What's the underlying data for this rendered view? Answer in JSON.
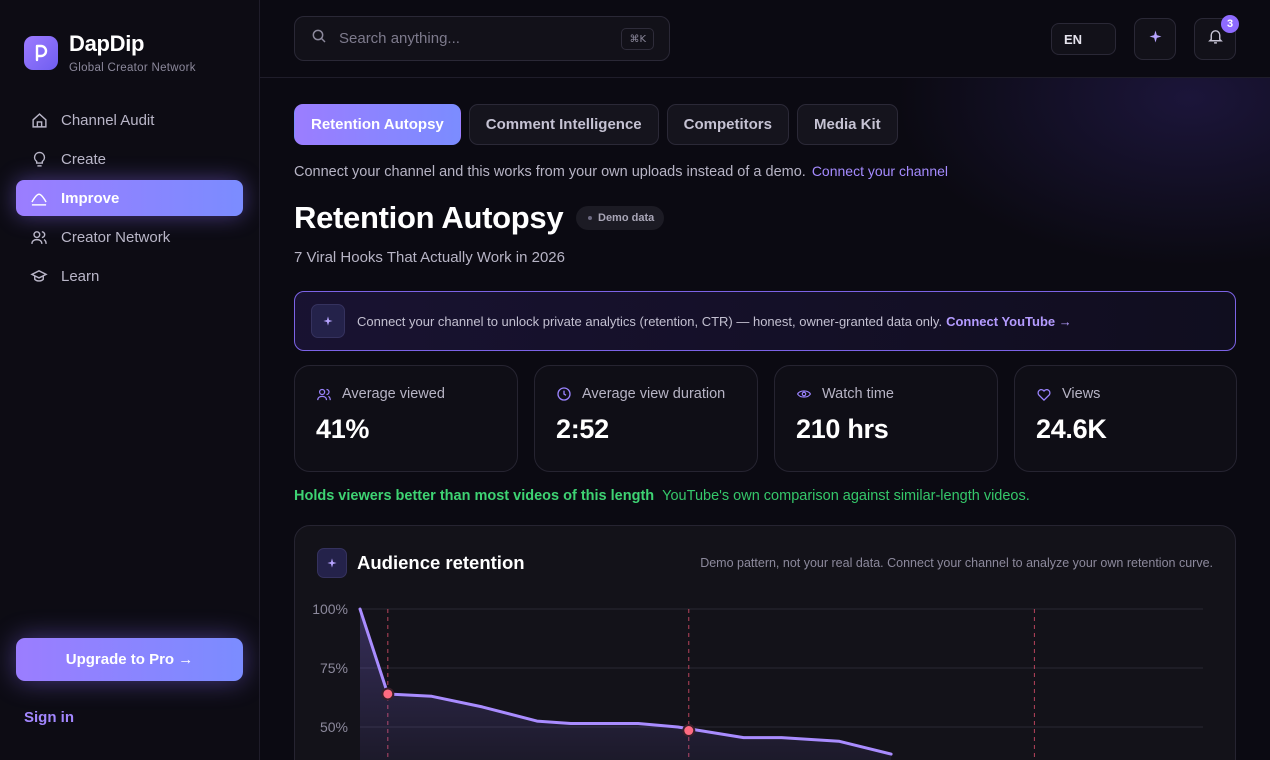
{
  "brand": {
    "name": "DapDip",
    "tagline": "Global Creator Network"
  },
  "sidebar": {
    "items": [
      {
        "label": "Channel Audit",
        "icon": "home-icon",
        "active": false
      },
      {
        "label": "Create",
        "icon": "lightbulb-icon",
        "active": false
      },
      {
        "label": "Improve",
        "icon": "trend-icon",
        "active": true
      },
      {
        "label": "Creator Network",
        "icon": "users-icon",
        "active": false
      },
      {
        "label": "Learn",
        "icon": "graduation-cap-icon",
        "active": false
      }
    ],
    "upgrade_label": "Upgrade to Pro →",
    "signin_label": "Sign in"
  },
  "topbar": {
    "search_placeholder": "Search anything...",
    "search_shortcut": "⌘K",
    "language": "EN",
    "notification_count": "3"
  },
  "tabs": [
    {
      "label": "Retention Autopsy",
      "active": true
    },
    {
      "label": "Comment Intelligence",
      "active": false
    },
    {
      "label": "Competitors",
      "active": false
    },
    {
      "label": "Media Kit",
      "active": false
    }
  ],
  "connect_notice": {
    "text": "Connect your channel and this works from your own uploads instead of a demo.",
    "link": "Connect your channel"
  },
  "page": {
    "title": "Retention Autopsy",
    "demo_badge": "Demo data",
    "subtitle": "7 Viral Hooks That Actually Work in 2026"
  },
  "banner": {
    "text": "Connect your channel to unlock private analytics (retention, CTR) — honest, owner-granted data only.",
    "link": "Connect YouTube →"
  },
  "stats": [
    {
      "label": "Average viewed",
      "value": "41%",
      "icon": "users-icon"
    },
    {
      "label": "Average view duration",
      "value": "2:52",
      "icon": "clock-icon"
    },
    {
      "label": "Watch time",
      "value": "210 hrs",
      "icon": "eye-icon"
    },
    {
      "label": "Views",
      "value": "24.6K",
      "icon": "heart-icon"
    }
  ],
  "comparison": {
    "headline": "Holds viewers better than most videos of this length",
    "detail": "YouTube's own comparison against similar-length videos."
  },
  "chart_card": {
    "title": "Audience retention",
    "note": "Demo pattern, not your real data. Connect your channel to analyze your own retention curve."
  },
  "colors": {
    "accent": "#9b7dff",
    "accent2": "#7b8cff",
    "positive": "#3ed373",
    "marker": "#ff6b81"
  },
  "chart_data": {
    "type": "area",
    "ytick_labels": [
      "100%",
      "75%",
      "50%"
    ],
    "ylim": [
      0,
      100
    ],
    "xlim": [
      0,
      100
    ],
    "x": [
      0,
      3.3,
      8.5,
      14.5,
      21,
      25,
      33,
      37.7,
      45.5,
      50,
      56.8,
      63
    ],
    "values": [
      100,
      64,
      63,
      58.5,
      52.5,
      51.5,
      51.5,
      50,
      45.5,
      45.5,
      44,
      38.5
    ],
    "markers": [
      {
        "x": 3.3,
        "y": 64
      },
      {
        "x": 39,
        "y": 48.5
      }
    ],
    "dashed_markers_x": [
      3.3,
      39,
      80
    ]
  }
}
